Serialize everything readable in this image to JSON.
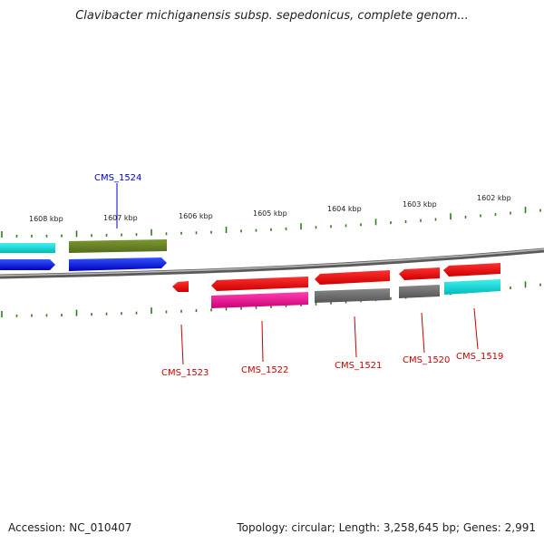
{
  "header": {
    "title": "Clavibacter michiganensis subsp. sepedonicus, complete genom..."
  },
  "footer": {
    "accession": "Accession: NC_010407",
    "summary": "Topology: circular; Length: 3,258,645 bp; Genes: 2,991"
  },
  "scale": {
    "labels": [
      "1608 kbp",
      "1607 kbp",
      "1606 kbp",
      "1605 kbp",
      "1604 kbp",
      "1603 kbp",
      "1602 kbp"
    ]
  },
  "genes": [
    {
      "label": "CMS_1524",
      "color": "#0000cc"
    },
    {
      "label": "CMS_1523",
      "color": "#cc0000"
    },
    {
      "label": "CMS_1522",
      "color": "#cc0000"
    },
    {
      "label": "CMS_1521",
      "color": "#cc0000"
    },
    {
      "label": "CMS_1520",
      "color": "#cc0000"
    },
    {
      "label": "CMS_1519",
      "color": "#cc0000"
    }
  ],
  "colors": {
    "backbone": "#808080",
    "cds_forward": "#0000ee",
    "cds_reverse": "#ee0000",
    "cog_olive": "#6b8e23",
    "cog_cyan": "#00cccc",
    "cog_magenta": "#e0108a",
    "cog_gray": "#666666",
    "tick": "#2e7d1e"
  }
}
